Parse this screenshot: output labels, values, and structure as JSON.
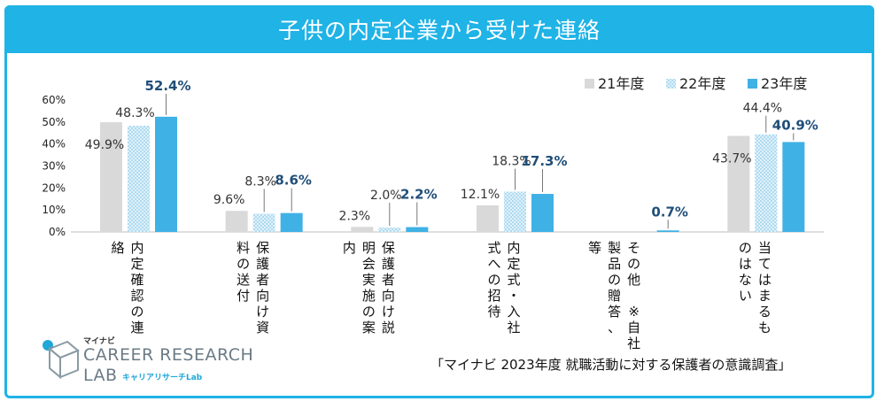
{
  "title": "子供の内定企業から受けた連絡",
  "source": "「マイナビ 2023年度 就職活動に対する保護者の意識調査」",
  "logo": {
    "brand": "マイナビ",
    "line1": "CAREER RESEARCH",
    "line2": "LAB",
    "sub": "キャリアリサーチLab"
  },
  "chart_data": {
    "type": "bar",
    "title": "子供の内定企業から受けた連絡",
    "ylim": [
      0,
      60
    ],
    "yticks": [
      "0%",
      "10%",
      "20%",
      "30%",
      "40%",
      "50%",
      "60%"
    ],
    "categories": [
      [
        "内定確認の連",
        "絡"
      ],
      [
        "保護者向け資",
        "料の送付"
      ],
      [
        "保護者向け説",
        "明会実施の案",
        "内"
      ],
      [
        "内定式・入社",
        "式への招待"
      ],
      [
        "その他 ※自社",
        "製品の贈答、",
        "等"
      ],
      [
        "当てはまるも",
        "のはない"
      ]
    ],
    "series": [
      {
        "name": "21年度",
        "values": [
          49.9,
          9.6,
          2.3,
          12.1,
          null,
          43.7
        ],
        "labels": [
          "49.9%",
          "9.6%",
          "2.3%",
          "12.1%",
          "",
          "43.7%"
        ]
      },
      {
        "name": "22年度",
        "values": [
          48.3,
          8.3,
          2.0,
          18.3,
          null,
          44.4
        ],
        "labels": [
          "48.3%",
          "8.3%",
          "2.0%",
          "18.3%",
          "",
          "44.4%"
        ]
      },
      {
        "name": "23年度",
        "values": [
          52.4,
          8.6,
          2.2,
          17.3,
          0.7,
          40.9
        ],
        "labels": [
          "52.4%",
          "8.6%",
          "2.2%",
          "17.3%",
          "0.7%",
          "40.9%"
        ]
      }
    ],
    "legend": [
      "21年度",
      "22年度",
      "23年度"
    ],
    "colors": {
      "s21": "#d9d9d9",
      "s22": "#b8dff3",
      "s23": "#3fb1e5",
      "label23": "#1f4e79"
    }
  }
}
